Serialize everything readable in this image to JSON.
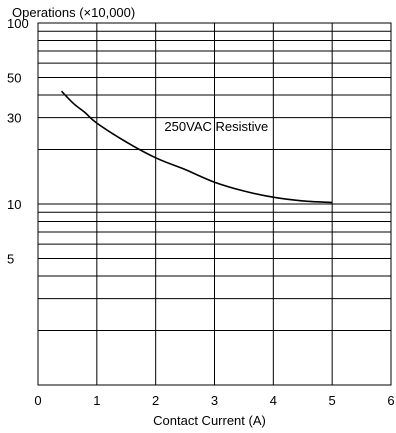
{
  "chart_data": {
    "type": "line",
    "title": "",
    "ylabel": "Operations (×10,000)",
    "xlabel": "Contact Current (A)",
    "xlim": [
      0,
      6
    ],
    "ylim": [
      1,
      100
    ],
    "yscale": "log",
    "grid": true,
    "x_ticks": [
      "0",
      "1",
      "2",
      "3",
      "4",
      "5",
      "6"
    ],
    "y_ticks": [
      {
        "value": 100,
        "label": "100"
      },
      {
        "value": 50,
        "label": "50"
      },
      {
        "value": 30,
        "label": "30"
      },
      {
        "value": 10,
        "label": "10"
      },
      {
        "value": 5,
        "label": "5"
      }
    ],
    "series": [
      {
        "name": "250VAC Resistive",
        "color": "#000000",
        "x": [
          0.4,
          0.6,
          0.8,
          1.0,
          1.5,
          2.0,
          2.5,
          3.0,
          3.5,
          4.0,
          4.5,
          5.0
        ],
        "y": [
          42,
          36,
          32,
          28,
          22,
          18,
          15.5,
          13.2,
          11.8,
          10.9,
          10.4,
          10.2
        ]
      }
    ],
    "annotations": [
      {
        "text": "250VAC Resistive",
        "x": 2.2,
        "y": 27
      }
    ]
  }
}
